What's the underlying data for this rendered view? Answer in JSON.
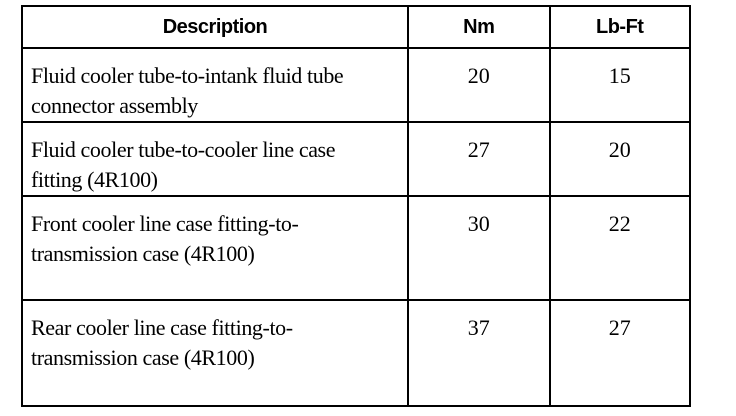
{
  "headers": [
    "Description",
    "Nm",
    "Lb-Ft"
  ],
  "rows": [
    {
      "description": "Fluid cooler tube-to-intank fluid tube connector assembly",
      "nm": "20",
      "lbft": "15"
    },
    {
      "description": "Fluid cooler tube-to-cooler line case fitting (4R100)",
      "nm": "27",
      "lbft": "20"
    },
    {
      "description": "Front cooler line case fitting-to-transmission case (4R100)",
      "nm": "30",
      "lbft": "22"
    },
    {
      "description": "Rear cooler line case fitting-to-transmission case (4R100)",
      "nm": "37",
      "lbft": "27"
    }
  ]
}
